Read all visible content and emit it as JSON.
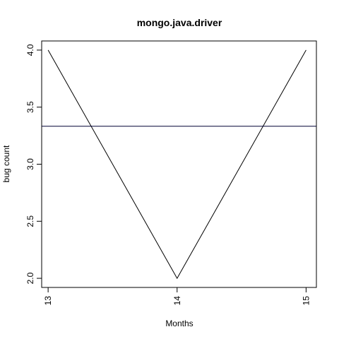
{
  "chart_data": {
    "type": "line",
    "title": "mongo.java.driver",
    "xlabel": "Months",
    "ylabel": "bug count",
    "x": [
      13,
      14,
      15
    ],
    "series": [
      {
        "values": [
          4.0,
          2.0,
          4.0
        ]
      }
    ],
    "reference_line": {
      "y": 3.333
    },
    "xlim": [
      12.95,
      15.08
    ],
    "ylim": [
      1.92,
      4.08
    ],
    "xticks": [
      13,
      14,
      15
    ],
    "xtick_labels": [
      "13",
      "14",
      "15"
    ],
    "yticks": [
      2.0,
      2.5,
      3.0,
      3.5,
      4.0
    ],
    "ytick_labels": [
      "2.0",
      "2.5",
      "3.0",
      "3.5",
      "4.0"
    ],
    "grid": false,
    "colors": {
      "series": "#000000",
      "reference_line": "#000033"
    }
  }
}
